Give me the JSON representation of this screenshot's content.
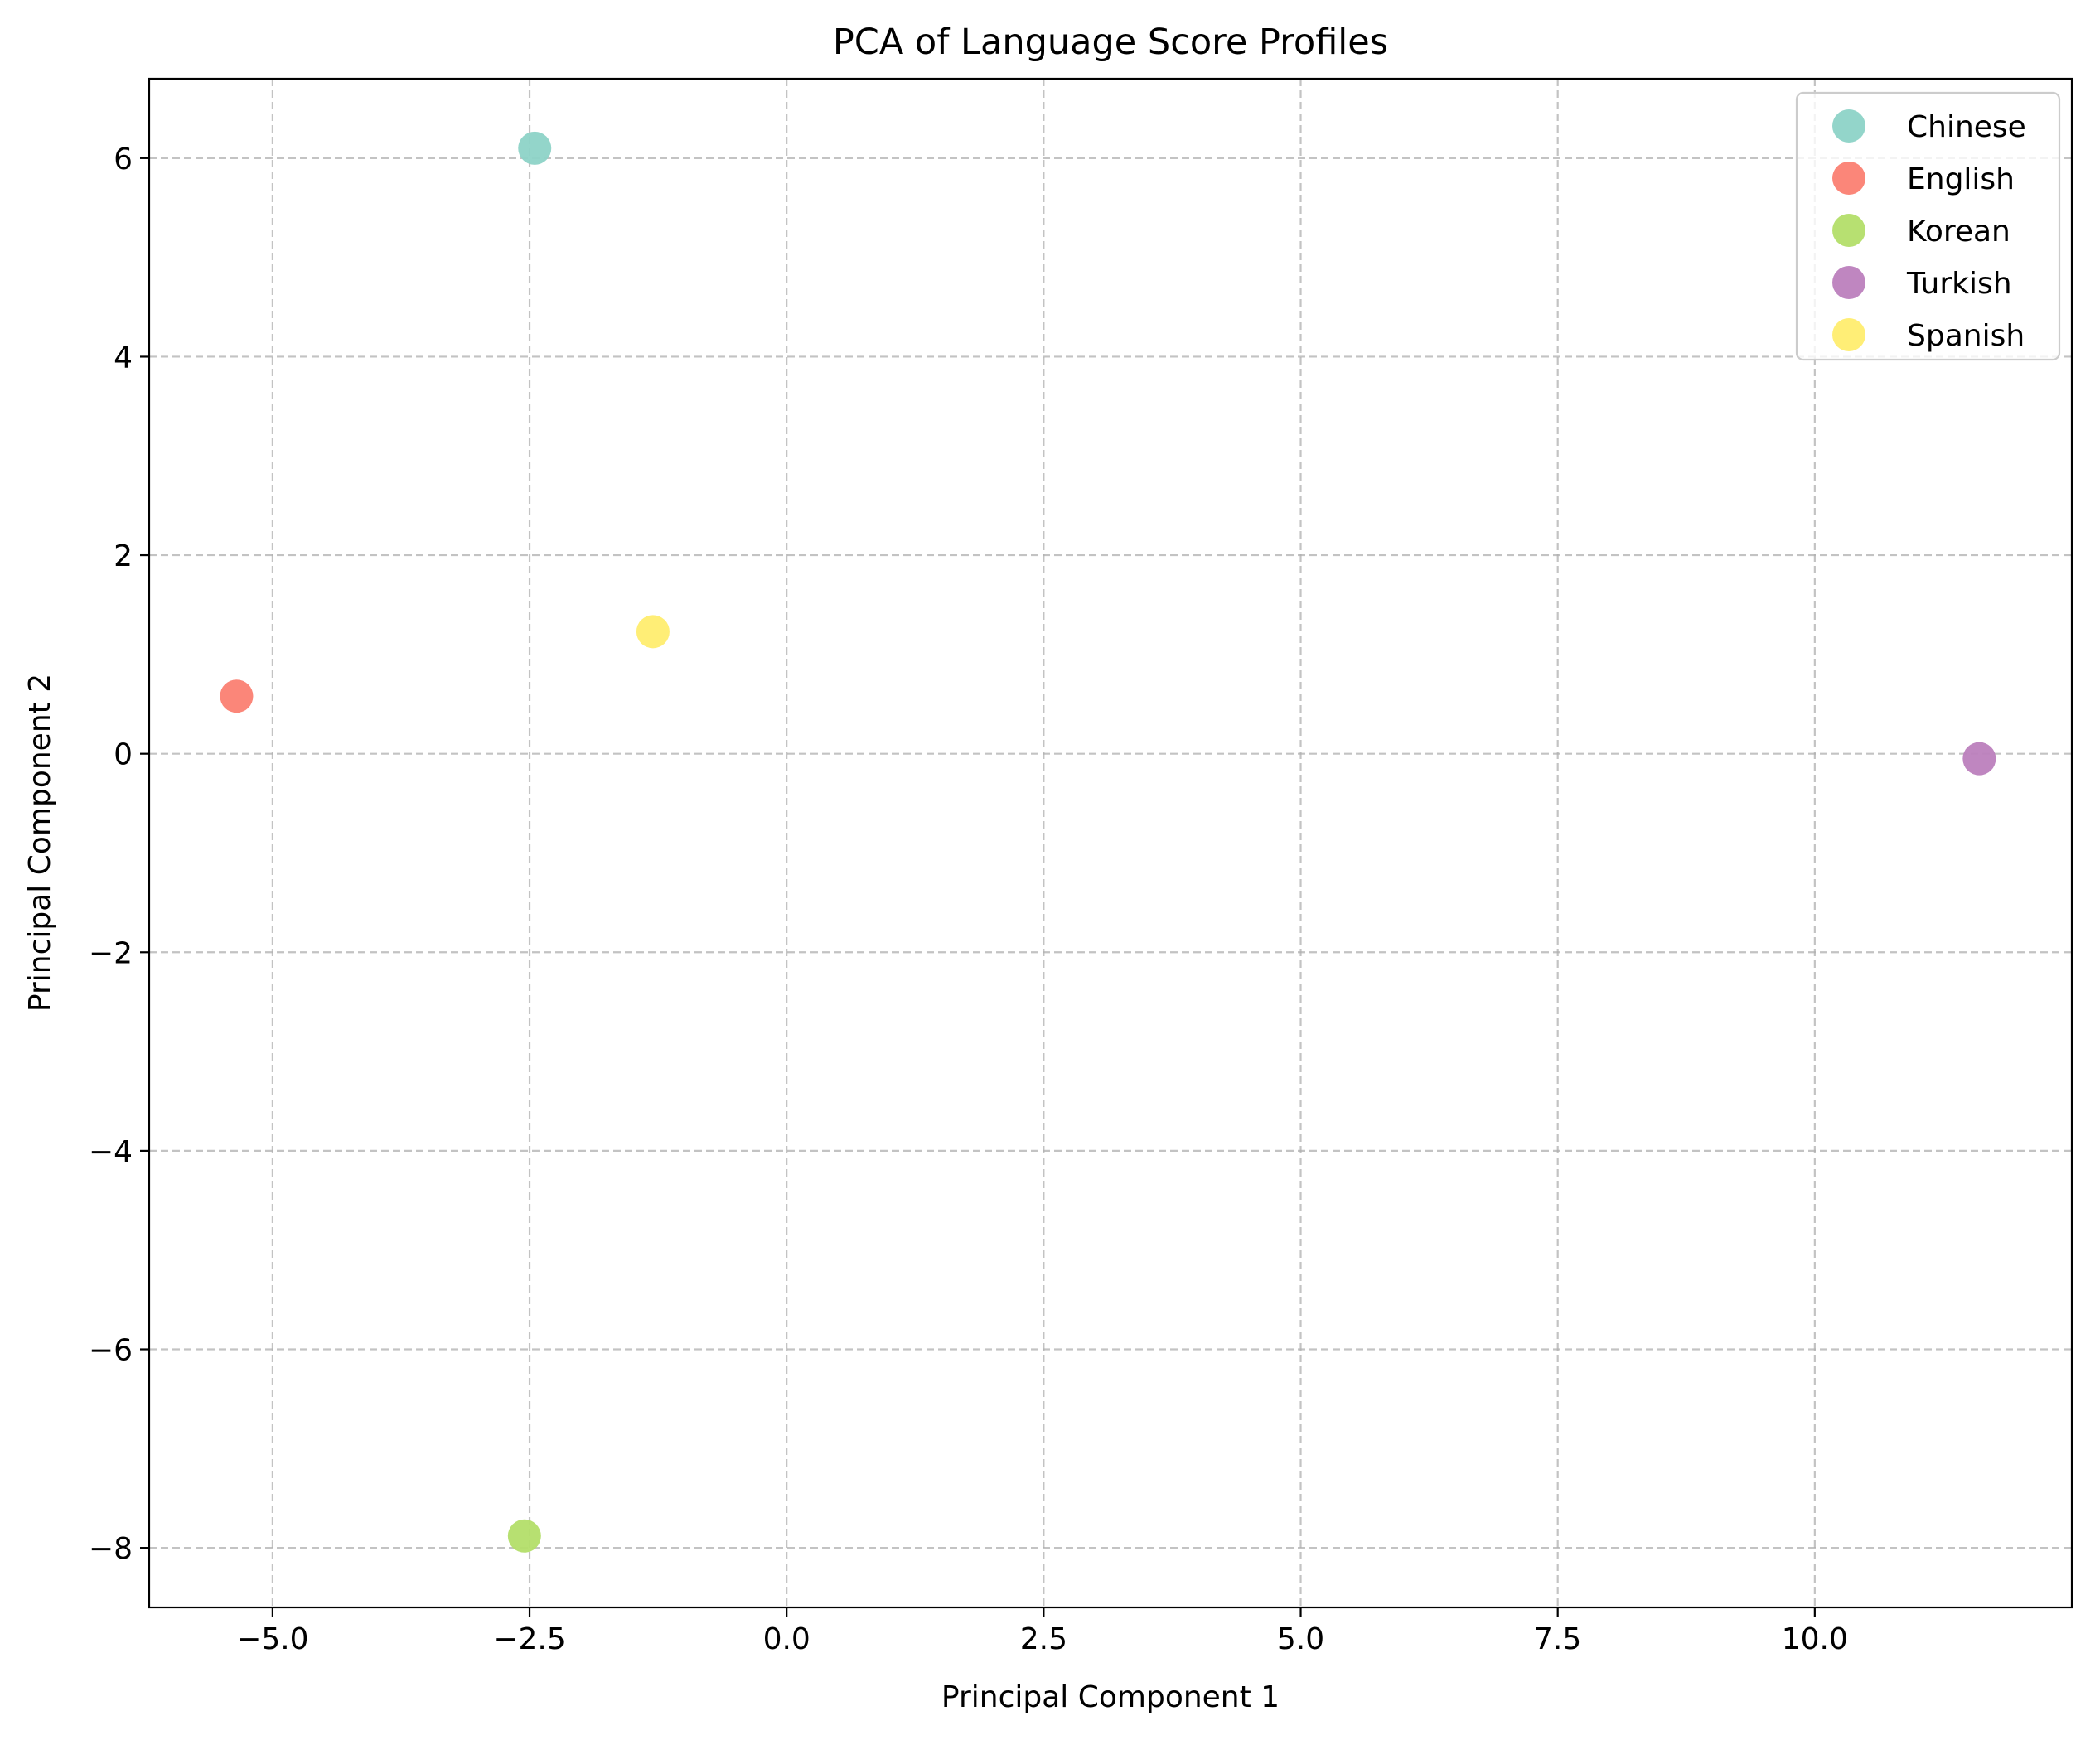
{
  "chart_data": {
    "type": "scatter",
    "title": "PCA of Language Score Profiles",
    "xlabel": "Principal Component 1",
    "ylabel": "Principal Component 2",
    "xlim": [
      -6.2,
      12.5
    ],
    "ylim": [
      -8.6,
      6.8
    ],
    "x_ticks": [
      -5.0,
      -2.5,
      0.0,
      2.5,
      5.0,
      7.5,
      10.0
    ],
    "x_tick_labels": [
      "−5.0",
      "−2.5",
      "0.0",
      "2.5",
      "5.0",
      "7.5",
      "10.0"
    ],
    "y_ticks": [
      -8,
      -6,
      -4,
      -2,
      0,
      2,
      4,
      6
    ],
    "y_tick_labels": [
      "−8",
      "−6",
      "−4",
      "−2",
      "0",
      "2",
      "4",
      "6"
    ],
    "grid": true,
    "legend_position": "top-right",
    "series": [
      {
        "name": "Chinese",
        "color": "#8dd3c7",
        "points": [
          {
            "x": -2.45,
            "y": 6.1
          }
        ]
      },
      {
        "name": "English",
        "color": "#fb8072",
        "points": [
          {
            "x": -5.35,
            "y": 0.58
          }
        ]
      },
      {
        "name": "Korean",
        "color": "#b3de69",
        "points": [
          {
            "x": -2.55,
            "y": -7.88
          }
        ]
      },
      {
        "name": "Turkish",
        "color": "#bc80bd",
        "points": [
          {
            "x": 11.6,
            "y": -0.05
          }
        ]
      },
      {
        "name": "Spanish",
        "color": "#ffed6f",
        "points": [
          {
            "x": -1.3,
            "y": 1.23
          }
        ]
      }
    ]
  }
}
